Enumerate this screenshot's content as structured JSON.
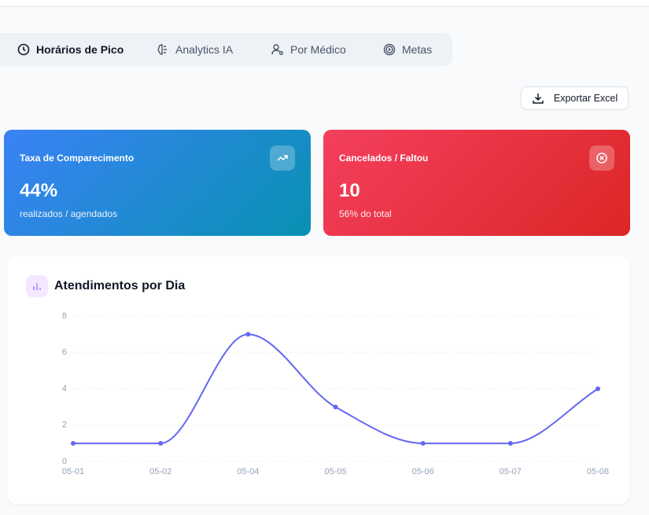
{
  "tabs": [
    "Horários de Pico",
    "Analytics IA",
    "Por Médico",
    "Metas"
  ],
  "export_button": "Exportar Excel",
  "cards": [
    {
      "title": "Taxa de Comparecimento",
      "value": "44%",
      "subtitle": "realizados / agendados"
    },
    {
      "title": "Cancelados / Faltou",
      "value": "10",
      "subtitle": "56% do total"
    }
  ],
  "chart_data": {
    "type": "line",
    "title": "Atendimentos por Dia",
    "categories": [
      "05-01",
      "05-02",
      "05-04",
      "05-05",
      "05-06",
      "05-07",
      "05-08"
    ],
    "values": [
      1,
      1,
      7,
      3,
      1,
      1,
      4
    ],
    "color": "#6366f1",
    "ylim": [
      0,
      8
    ],
    "yticks": [
      0,
      2,
      4,
      6,
      8
    ],
    "grid": true
  }
}
